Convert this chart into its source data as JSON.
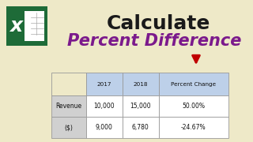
{
  "bg_color": "#eee9c8",
  "title1": "Calculate",
  "title1_color": "#1a1a1a",
  "title2": "Percent Difference",
  "title2_color": "#7b1a8c",
  "table_headers": [
    "",
    "2017",
    "2018",
    "Percent Change"
  ],
  "table_row1": [
    "Revenue",
    "10,000",
    "15,000",
    "50.00%"
  ],
  "table_row2": [
    "($)",
    "9,000",
    "6,780",
    "-24.67%"
  ],
  "header_bg": "#bdd0e9",
  "row_label_bg": "#d0d0d0",
  "row_bg": "#ffffff",
  "arrow_color": "#c00000",
  "excel_green_dark": "#1e6b38",
  "excel_green_light": "#21a050",
  "excel_white": "#ffffff"
}
